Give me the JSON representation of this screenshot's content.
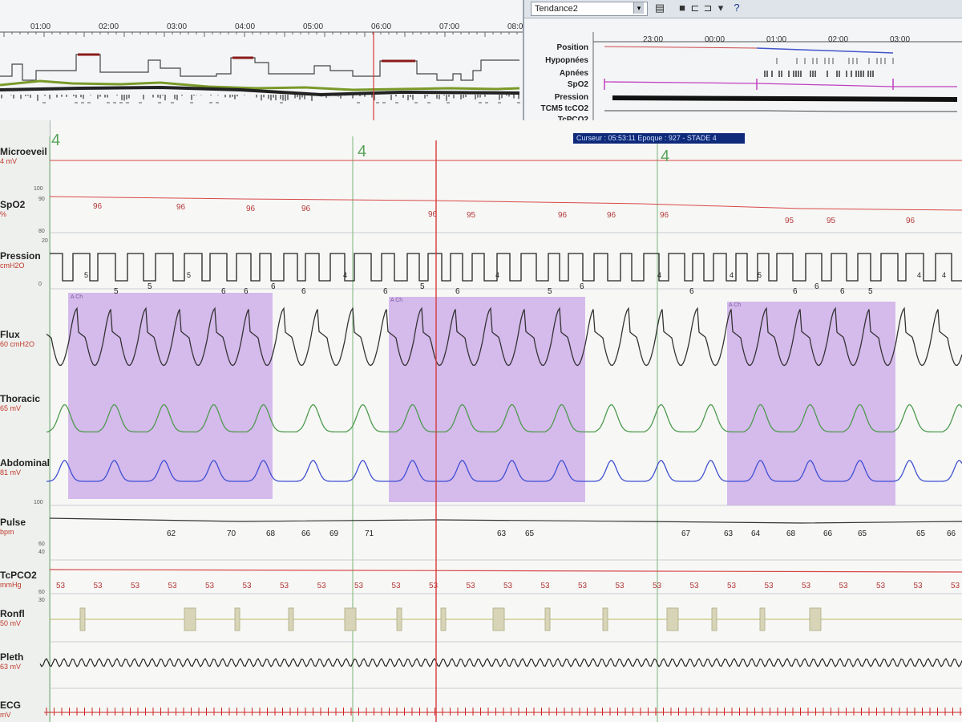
{
  "overview": {
    "time_labels": [
      "01:00",
      "02:00",
      "03:00",
      "04:00",
      "05:00",
      "06:00",
      "07:00",
      "08:00"
    ]
  },
  "trend_window": {
    "title": "Tendance2",
    "dropdown_arrow": "▾",
    "toolbar_icons": [
      "print-icon",
      "save-icon",
      "folder-icon",
      "folder2-icon",
      "trash-icon",
      "help-icon"
    ],
    "help_label": "?",
    "time_labels": [
      "23:00",
      "00:00",
      "01:00",
      "02:00",
      "03:00"
    ],
    "channels": [
      "Position",
      "Hypopnées",
      "Apnées",
      "SpO2",
      "Pression",
      "TCM5 tcCO2",
      "TcPCO2"
    ]
  },
  "cursor_info": "Curseur : 05:53:11  Epoque : 927 - STADE 4",
  "stage_markers": [
    "4",
    "4",
    "4",
    "4"
  ],
  "channels": [
    {
      "name": "Microeveil",
      "unit": "4 mV"
    },
    {
      "name": "SpO2",
      "unit": "%"
    },
    {
      "name": "Pression",
      "unit": "cmH2O"
    },
    {
      "name": "Flux",
      "unit": "60 cmH2O"
    },
    {
      "name": "Thoracic",
      "unit": "65 mV"
    },
    {
      "name": "Abdominal",
      "unit": "81 mV"
    },
    {
      "name": "Pulse",
      "unit": "bpm"
    },
    {
      "name": "TcPCO2",
      "unit": "mmHg"
    },
    {
      "name": "Ronfl",
      "unit": "50 mV"
    },
    {
      "name": "Pleth",
      "unit": "63 mV"
    },
    {
      "name": "ECG",
      "unit": "mV"
    }
  ],
  "scale_marks": [
    "100",
    "90",
    "80",
    "20",
    "0",
    "100",
    "60",
    "40",
    "60",
    "30"
  ],
  "spo2_values": [
    "96",
    "96",
    "96",
    "96",
    "96",
    "95",
    "96",
    "96",
    "96",
    "95",
    "95",
    "96"
  ],
  "pression_values": [
    "5",
    "5",
    "6",
    "6",
    "6",
    "6",
    "6",
    "5",
    "6",
    "5",
    "6",
    "6",
    "6",
    "6",
    "6",
    "5"
  ],
  "pression_small_values": [
    "5",
    "5",
    "4",
    "4",
    "4",
    "4",
    "5",
    "4",
    "4"
  ],
  "pulse_values": [
    "62",
    "70",
    "68",
    "66",
    "69",
    "71",
    "63",
    "65",
    "67",
    "63",
    "64",
    "68",
    "66",
    "65",
    "65",
    "66"
  ],
  "tcpco2_values": [
    "53",
    "53",
    "53",
    "53",
    "53",
    "53",
    "53",
    "53",
    "53",
    "53",
    "53",
    "53",
    "53",
    "53",
    "53",
    "53",
    "53",
    "53",
    "53",
    "53",
    "53",
    "53",
    "53",
    "53",
    "53"
  ],
  "event_labels": [
    "A Ch",
    "A Ch",
    "A Ch"
  ],
  "colors": {
    "event_highlight": "#c9a6e8",
    "cursor_line": "#d83a3a",
    "thoracic": "#4e9a4e",
    "abdominal": "#3f4fd1",
    "spo2_line": "#d84848",
    "pleth": "#222222",
    "ecg": "#cc2222"
  }
}
